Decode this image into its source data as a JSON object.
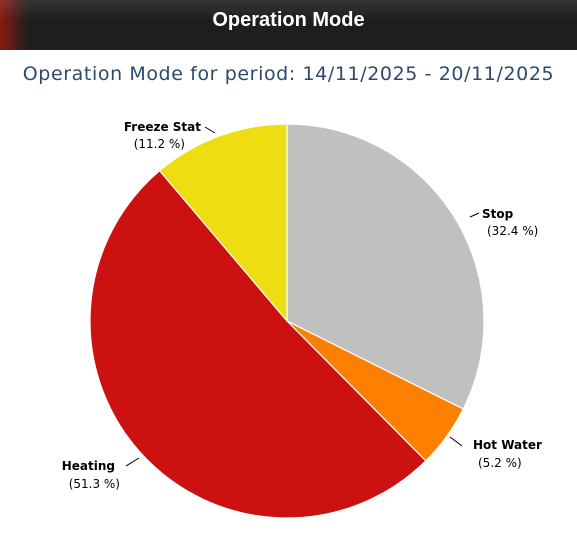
{
  "header": {
    "title": "Operation Mode"
  },
  "chart_data": {
    "type": "pie",
    "title": "Operation Mode for period: 14/11/2025 - 20/11/2025",
    "slices": [
      {
        "label": "Stop",
        "value": 32.4,
        "pct_text": "(32.4 %)",
        "color": "#c0c0c0"
      },
      {
        "label": "Hot Water",
        "value": 5.2,
        "pct_text": "(5.2 %)",
        "color": "#ff8000"
      },
      {
        "label": "Heating",
        "value": 51.3,
        "pct_text": "(51.3 %)",
        "color": "#cc1111"
      },
      {
        "label": "Freeze Stat",
        "value": 11.2,
        "pct_text": "(11.2 %)",
        "color": "#eedd11"
      }
    ]
  }
}
